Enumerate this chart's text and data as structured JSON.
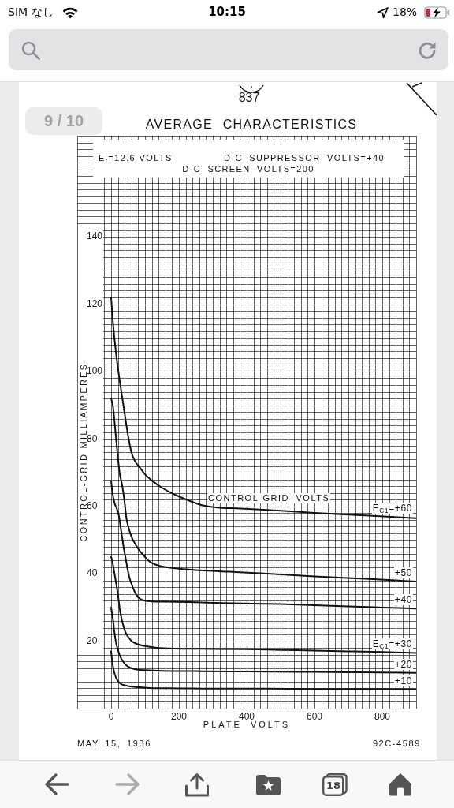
{
  "chart_data": {
    "type": "line",
    "title": "AVERAGE CHARACTERISTICS",
    "xlabel": "PLATE VOLTS",
    "ylabel": "CONTROL-GRID MILLIAMPERES",
    "annotations": [
      "CONTROL-GRID VOLTS",
      "E$_{f}$=12.6 VOLTS",
      "D-C SUPPRESSOR VOLTS=+40",
      "D-C SCREEN VOLTS=200",
      "MAY 15, 1936",
      "92C-4589",
      "837",
      "9 / 10",
      "SIM なし",
      "10:15",
      "18%",
      "18"
    ],
    "xlim": [
      -100,
      900
    ],
    "ylim": [
      0,
      170
    ],
    "xticks": [
      {
        "value": -100,
        "label": null
      },
      {
        "value": -20,
        "label": null
      },
      0,
      {
        "value": 20,
        "label": null
      },
      {
        "value": 40,
        "label": null
      },
      {
        "value": 60,
        "label": null
      },
      {
        "value": 80,
        "label": null
      },
      {
        "value": 100,
        "label": null
      },
      {
        "value": 120,
        "label": null
      },
      {
        "value": 140,
        "label": null
      },
      {
        "value": 160,
        "label": null
      },
      {
        "value": 180,
        "label": null
      },
      200,
      {
        "value": 220,
        "label": null
      },
      {
        "value": 240,
        "label": null
      },
      {
        "value": 260,
        "label": null
      },
      {
        "value": 280,
        "label": null
      },
      {
        "value": 300,
        "label": null
      },
      {
        "value": 320,
        "label": null
      },
      {
        "value": 340,
        "label": null
      },
      {
        "value": 360,
        "label": null
      },
      {
        "value": 380,
        "label": null
      },
      400,
      {
        "value": 420,
        "label": null
      },
      {
        "value": 440,
        "label": null
      },
      {
        "value": 460,
        "label": null
      },
      {
        "value": 480,
        "label": null
      },
      {
        "value": 500,
        "label": null
      },
      {
        "value": 520,
        "label": null
      },
      {
        "value": 540,
        "label": null
      },
      {
        "value": 560,
        "label": null
      },
      {
        "value": 580,
        "label": null
      },
      600,
      {
        "value": 620,
        "label": null
      },
      {
        "value": 640,
        "label": null
      },
      {
        "value": 660,
        "label": null
      },
      {
        "value": 680,
        "label": null
      },
      {
        "value": 700,
        "label": null
      },
      {
        "value": 720,
        "label": null
      },
      {
        "value": 740,
        "label": null
      },
      {
        "value": 760,
        "label": null
      },
      {
        "value": 780,
        "label": null
      },
      800,
      {
        "value": 820,
        "label": null
      },
      {
        "value": 840,
        "label": null
      },
      {
        "value": 860,
        "label": null
      },
      {
        "value": 880,
        "label": null
      },
      {
        "value": 900,
        "label": null
      }
    ],
    "yticks": [
      {
        "value": 0,
        "label": null
      },
      {
        "value": 2,
        "label": null
      },
      {
        "value": 4,
        "label": null
      },
      {
        "value": 6,
        "label": null
      },
      {
        "value": 8,
        "label": null
      },
      {
        "value": 10,
        "label": null
      },
      {
        "value": 12,
        "label": null
      },
      {
        "value": 14,
        "label": null
      },
      {
        "value": 16,
        "label": null
      },
      {
        "value": 18,
        "label": null
      },
      20,
      {
        "value": 22,
        "label": null
      },
      {
        "value": 24,
        "label": null
      },
      {
        "value": 26,
        "label": null
      },
      {
        "value": 28,
        "label": null
      },
      {
        "value": 30,
        "label": null
      },
      {
        "value": 32,
        "label": null
      },
      {
        "value": 34,
        "label": null
      },
      {
        "value": 36,
        "label": null
      },
      {
        "value": 38,
        "label": null
      },
      40,
      {
        "value": 42,
        "label": null
      },
      {
        "value": 44,
        "label": null
      },
      {
        "value": 46,
        "label": null
      },
      {
        "value": 48,
        "label": null
      },
      {
        "value": 50,
        "label": null
      },
      {
        "value": 52,
        "label": null
      },
      {
        "value": 54,
        "label": null
      },
      {
        "value": 56,
        "label": null
      },
      {
        "value": 58,
        "label": null
      },
      60,
      {
        "value": 62,
        "label": null
      },
      {
        "value": 64,
        "label": null
      },
      {
        "value": 66,
        "label": null
      },
      {
        "value": 68,
        "label": null
      },
      {
        "value": 70,
        "label": null
      },
      {
        "value": 72,
        "label": null
      },
      {
        "value": 74,
        "label": null
      },
      {
        "value": 76,
        "label": null
      },
      {
        "value": 78,
        "label": null
      },
      80,
      {
        "value": 82,
        "label": null
      },
      {
        "value": 84,
        "label": null
      },
      {
        "value": 86,
        "label": null
      },
      {
        "value": 88,
        "label": null
      },
      {
        "value": 90,
        "label": null
      },
      {
        "value": 92,
        "label": null
      },
      {
        "value": 94,
        "label": null
      },
      {
        "value": 96,
        "label": null
      },
      {
        "value": 98,
        "label": null
      },
      100,
      {
        "value": 102,
        "label": null
      },
      {
        "value": 104,
        "label": null
      },
      {
        "value": 106,
        "label": null
      },
      {
        "value": 108,
        "label": null
      },
      {
        "value": 110,
        "label": null
      },
      {
        "value": 112,
        "label": null
      },
      {
        "value": 114,
        "label": null
      },
      {
        "value": 116,
        "label": null
      },
      {
        "value": 118,
        "label": null
      },
      120,
      {
        "value": 122,
        "label": null
      },
      {
        "value": 124,
        "label": null
      },
      {
        "value": 126,
        "label": null
      },
      {
        "value": 128,
        "label": null
      },
      {
        "value": 130,
        "label": null
      },
      {
        "value": 132,
        "label": null
      },
      {
        "value": 134,
        "label": null
      },
      {
        "value": 136,
        "label": null
      },
      {
        "value": 138,
        "label": null
      },
      140,
      {
        "value": 142,
        "label": null
      },
      {
        "value": 144,
        "label": null
      },
      {
        "value": 146,
        "label": null
      },
      {
        "value": 148,
        "label": null
      },
      {
        "value": 150,
        "label": null
      },
      {
        "value": 152,
        "label": null
      },
      {
        "value": 154,
        "label": null
      },
      {
        "value": 156,
        "label": null
      },
      {
        "value": 158,
        "label": null
      },
      {
        "value": 160,
        "label": null
      },
      {
        "value": 162,
        "label": null
      },
      {
        "value": 164,
        "label": null
      },
      {
        "value": 166,
        "label": null
      },
      {
        "value": 168,
        "label": null
      },
      {
        "value": 170,
        "label": null
      }
    ],
    "grid": true,
    "marker": "none",
    "series": [
      {
        "name": "E$_{C1}$=+60",
        "color": "#111111",
        "x": [
          0,
          5,
          15,
          25,
          40,
          50,
          60,
          70,
          85,
          100,
          120,
          150,
          190,
          230,
          270,
          320,
          370,
          450,
          600,
          750,
          900
        ],
        "values": [
          122,
          115,
          105,
          97.5,
          87.5,
          81,
          76,
          73.5,
          71.5,
          69.5,
          67.7,
          65.5,
          63.4,
          61.7,
          60.3,
          59.6,
          59.4,
          59,
          58.1,
          57.3,
          56.5
        ]
      },
      {
        "name": "+50",
        "color": "#111111",
        "x": [
          0,
          5,
          12,
          18,
          25,
          33,
          40,
          45,
          52,
          60,
          70,
          83,
          100,
          115,
          135,
          160,
          200,
          250,
          350,
          450,
          600,
          750,
          900
        ],
        "values": [
          92,
          90,
          83,
          76.5,
          70,
          66,
          61,
          56.5,
          53.5,
          51,
          49,
          47,
          45,
          43.5,
          42.6,
          42,
          41.5,
          41.1,
          40.6,
          40.1,
          39.2,
          38.5,
          37.7
        ]
      },
      {
        "name": "+40",
        "color": "#111111",
        "x": [
          0,
          4,
          10,
          16,
          21,
          25,
          29,
          33,
          37,
          43,
          48,
          55,
          64,
          73,
          83,
          100,
          120,
          160,
          230,
          300,
          400,
          500,
          600,
          700,
          800,
          900
        ],
        "values": [
          67.5,
          64,
          61,
          59.5,
          58,
          56,
          53.2,
          50.5,
          47.8,
          44.5,
          41.6,
          38.5,
          36,
          34,
          32.7,
          32,
          31.8,
          31.7,
          31.6,
          31.4,
          31.2,
          31,
          30.7,
          30.3,
          30,
          29.7
        ]
      },
      {
        "name": "E$_{C1}$=+30",
        "color": "#111111",
        "x": [
          0,
          3,
          10,
          16,
          21,
          25,
          29,
          35,
          41,
          50,
          60,
          75,
          98,
          130,
          190,
          300,
          400,
          500,
          600,
          700,
          800,
          900
        ],
        "values": [
          45,
          44,
          40,
          36.5,
          33,
          30,
          27.5,
          25,
          23,
          21.3,
          20.1,
          19.2,
          18.6,
          18.1,
          17.8,
          17.7,
          17.6,
          17.4,
          17.2,
          17,
          16.8,
          16.5
        ]
      },
      {
        "name": "+20",
        "color": "#111111",
        "x": [
          0,
          3,
          6,
          10,
          14,
          20,
          25,
          35,
          45,
          60,
          75,
          100,
          150,
          250,
          400,
          550,
          700,
          900
        ],
        "values": [
          30,
          28,
          26,
          22.5,
          19.8,
          17.5,
          15.9,
          14,
          12.8,
          12,
          11.6,
          11.4,
          11.2,
          11.1,
          11,
          10.9,
          10.8,
          10.6
        ]
      },
      {
        "name": "+10",
        "color": "#111111",
        "x": [
          0,
          2,
          5,
          9,
          14,
          20,
          29,
          40,
          60,
          85,
          114,
          200,
          300,
          450,
          600,
          750,
          900
        ],
        "values": [
          17,
          15,
          12.8,
          10.8,
          9.3,
          8.2,
          7.3,
          6.9,
          6.5,
          6.3,
          6.1,
          6,
          5.9,
          5.9,
          5.8,
          5.8,
          5.7
        ]
      }
    ]
  }
}
